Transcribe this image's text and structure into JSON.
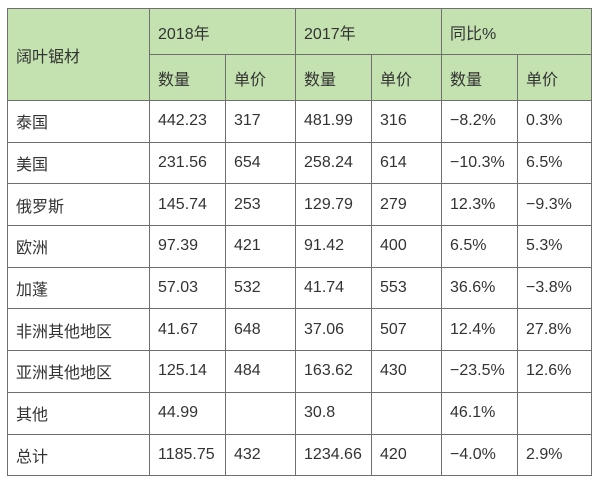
{
  "header": {
    "corner": "阔叶锯材",
    "group_2018": "2018年",
    "group_2017": "2017年",
    "group_yoy": "同比%",
    "quantity": "数量",
    "unit_price": "单价"
  },
  "rows": [
    {
      "name": "泰国",
      "q2018": "442.23",
      "p2018": "317",
      "q2017": "481.99",
      "p2017": "316",
      "yoy_q": "−8.2%",
      "yoy_p": "0.3%"
    },
    {
      "name": "美国",
      "q2018": "231.56",
      "p2018": "654",
      "q2017": "258.24",
      "p2017": "614",
      "yoy_q": "−10.3%",
      "yoy_p": "6.5%"
    },
    {
      "name": "俄罗斯",
      "q2018": "145.74",
      "p2018": "253",
      "q2017": "129.79",
      "p2017": "279",
      "yoy_q": "12.3%",
      "yoy_p": "−9.3%"
    },
    {
      "name": "欧洲",
      "q2018": "97.39",
      "p2018": "421",
      "q2017": "91.42",
      "p2017": "400",
      "yoy_q": "6.5%",
      "yoy_p": "5.3%"
    },
    {
      "name": "加蓬",
      "q2018": "57.03",
      "p2018": "532",
      "q2017": "41.74",
      "p2017": "553",
      "yoy_q": "36.6%",
      "yoy_p": "−3.8%"
    },
    {
      "name": "非洲其他地区",
      "q2018": "41.67",
      "p2018": "648",
      "q2017": "37.06",
      "p2017": "507",
      "yoy_q": "12.4%",
      "yoy_p": "27.8%"
    },
    {
      "name": "亚洲其他地区",
      "q2018": "125.14",
      "p2018": "484",
      "q2017": "163.62",
      "p2017": "430",
      "yoy_q": "−23.5%",
      "yoy_p": "12.6%"
    },
    {
      "name": "其他",
      "q2018": "44.99",
      "p2018": "",
      "q2017": "30.8",
      "p2017": "",
      "yoy_q": "46.1%",
      "yoy_p": ""
    },
    {
      "name": "总计",
      "q2018": "1185.75",
      "p2018": "432",
      "q2017": "1234.66",
      "p2017": "420",
      "yoy_q": "−4.0%",
      "yoy_p": "2.9%"
    }
  ]
}
